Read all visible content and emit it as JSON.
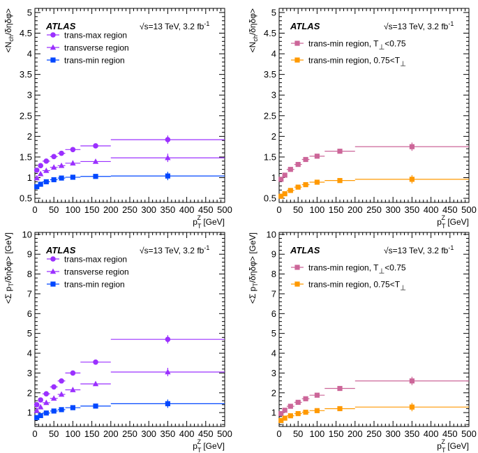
{
  "figure": {
    "experiment_label": "ATLAS"
  },
  "chart_data": [
    {
      "id": "top-left",
      "type": "scatter",
      "title": "",
      "xlabel": "p_T^Z [GeV]",
      "ylabel": "<N_ch/δηδφ>",
      "info": "√s=13 TeV, 3.2 fb⁻¹",
      "xlim": [
        0,
        500
      ],
      "ylim": [
        0.4,
        5.1
      ],
      "xticks": [
        0,
        50,
        100,
        150,
        200,
        250,
        300,
        350,
        400,
        450,
        500
      ],
      "yticks": [
        0.5,
        1,
        1.5,
        2,
        2.5,
        3,
        3.5,
        4,
        4.5,
        5
      ],
      "x_bins": [
        [
          0,
          10
        ],
        [
          10,
          20
        ],
        [
          20,
          40
        ],
        [
          40,
          60
        ],
        [
          60,
          80
        ],
        [
          80,
          120
        ],
        [
          120,
          200
        ],
        [
          200,
          500
        ]
      ],
      "x": [
        5,
        15,
        30,
        50,
        70,
        100,
        160,
        350
      ],
      "series": [
        {
          "name": "trans-max region",
          "marker": "circle",
          "color": "#9b30ff",
          "values": [
            1.18,
            1.29,
            1.4,
            1.51,
            1.59,
            1.68,
            1.77,
            1.92
          ]
        },
        {
          "name": "transverse region",
          "marker": "triangle",
          "color": "#9b30ff",
          "values": [
            0.99,
            1.09,
            1.17,
            1.25,
            1.29,
            1.35,
            1.39,
            1.48
          ]
        },
        {
          "name": "trans-min region",
          "marker": "square",
          "color": "#0047ff",
          "values": [
            0.78,
            0.84,
            0.9,
            0.95,
            0.99,
            1.01,
            1.03,
            1.04
          ]
        }
      ]
    },
    {
      "id": "top-right",
      "type": "scatter",
      "title": "",
      "xlabel": "p_T^Z [GeV]",
      "ylabel": "<N_ch/δηδφ>",
      "info": "√s=13 TeV, 3.2 fb⁻¹",
      "xlim": [
        0,
        500
      ],
      "ylim": [
        0.4,
        5.1
      ],
      "xticks": [
        0,
        50,
        100,
        150,
        200,
        250,
        300,
        350,
        400,
        450,
        500
      ],
      "yticks": [
        0.5,
        1,
        1.5,
        2,
        2.5,
        3,
        3.5,
        4,
        4.5,
        5
      ],
      "x_bins": [
        [
          0,
          10
        ],
        [
          10,
          20
        ],
        [
          20,
          40
        ],
        [
          40,
          60
        ],
        [
          60,
          80
        ],
        [
          80,
          120
        ],
        [
          120,
          200
        ],
        [
          200,
          500
        ]
      ],
      "x": [
        5,
        15,
        30,
        50,
        70,
        100,
        160,
        350
      ],
      "series": [
        {
          "name": "trans-min region, T_⊥<0.75",
          "marker": "square",
          "color": "#cc6699",
          "values": [
            0.96,
            1.06,
            1.2,
            1.32,
            1.44,
            1.52,
            1.64,
            1.75
          ]
        },
        {
          "name": "trans-min region, 0.75<T_⊥",
          "marker": "square",
          "color": "#ff9900",
          "values": [
            0.55,
            0.61,
            0.69,
            0.77,
            0.83,
            0.89,
            0.93,
            0.96
          ]
        }
      ]
    },
    {
      "id": "bottom-left",
      "type": "scatter",
      "title": "",
      "xlabel": "p_T^Z [GeV]",
      "ylabel": "<Σ p_T/δηδφ> [GeV]",
      "info": "√s=13 TeV, 3.2 fb⁻¹",
      "xlim": [
        0,
        500
      ],
      "ylim": [
        0.3,
        10.1
      ],
      "xticks": [
        0,
        50,
        100,
        150,
        200,
        250,
        300,
        350,
        400,
        450,
        500
      ],
      "yticks": [
        1,
        2,
        3,
        4,
        5,
        6,
        7,
        8,
        9,
        10
      ],
      "x_bins": [
        [
          0,
          10
        ],
        [
          10,
          20
        ],
        [
          20,
          40
        ],
        [
          40,
          60
        ],
        [
          60,
          80
        ],
        [
          80,
          120
        ],
        [
          120,
          200
        ],
        [
          200,
          500
        ]
      ],
      "x": [
        5,
        15,
        30,
        50,
        70,
        100,
        160,
        350
      ],
      "series": [
        {
          "name": "trans-max region",
          "marker": "circle",
          "color": "#9b30ff",
          "values": [
            1.4,
            1.64,
            1.95,
            2.3,
            2.6,
            3.0,
            3.55,
            4.7
          ]
        },
        {
          "name": "transverse region",
          "marker": "triangle",
          "color": "#9b30ff",
          "values": [
            1.1,
            1.28,
            1.5,
            1.72,
            1.92,
            2.15,
            2.45,
            3.05
          ]
        },
        {
          "name": "trans-min region",
          "marker": "square",
          "color": "#0047ff",
          "values": [
            0.75,
            0.85,
            0.98,
            1.08,
            1.15,
            1.25,
            1.33,
            1.45
          ]
        }
      ]
    },
    {
      "id": "bottom-right",
      "type": "scatter",
      "title": "",
      "xlabel": "p_T^Z [GeV]",
      "ylabel": "<Σ p_T/δηδφ> [GeV]",
      "info": "√s=13 TeV, 3.2 fb⁻¹",
      "xlim": [
        0,
        500
      ],
      "ylim": [
        0.3,
        10.1
      ],
      "xticks": [
        0,
        50,
        100,
        150,
        200,
        250,
        300,
        350,
        400,
        450,
        500
      ],
      "yticks": [
        1,
        2,
        3,
        4,
        5,
        6,
        7,
        8,
        9,
        10
      ],
      "x_bins": [
        [
          0,
          10
        ],
        [
          10,
          20
        ],
        [
          20,
          40
        ],
        [
          40,
          60
        ],
        [
          60,
          80
        ],
        [
          80,
          120
        ],
        [
          120,
          200
        ],
        [
          200,
          500
        ]
      ],
      "x": [
        5,
        15,
        30,
        50,
        70,
        100,
        160,
        350
      ],
      "series": [
        {
          "name": "trans-min region, T_⊥<0.75",
          "marker": "square",
          "color": "#cc6699",
          "values": [
            0.95,
            1.12,
            1.32,
            1.52,
            1.7,
            1.88,
            2.22,
            2.6
          ]
        },
        {
          "name": "trans-min region, 0.75<T_⊥",
          "marker": "square",
          "color": "#ff9900",
          "values": [
            0.6,
            0.72,
            0.84,
            0.95,
            1.02,
            1.1,
            1.2,
            1.28
          ]
        }
      ]
    }
  ]
}
